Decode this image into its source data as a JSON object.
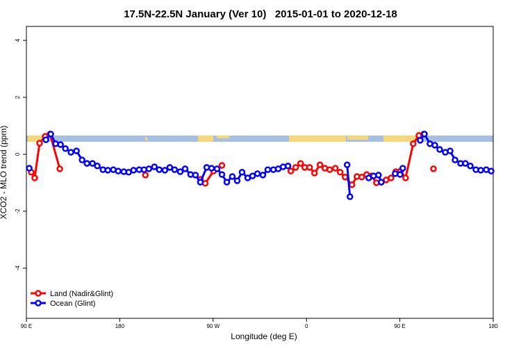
{
  "chart_data": {
    "type": "line",
    "title": "17.5N-22.5N January (Ver 10)   2015-01-01 to 2020-12-18",
    "xlabel": "Longitude (deg E)",
    "ylabel": "XCO2 - MLO trend (ppm)",
    "xlim": [
      90,
      540
    ],
    "xticks": [
      {
        "value": 90,
        "label": "90 E"
      },
      {
        "value": 180,
        "label": "180"
      },
      {
        "value": 270,
        "label": "90 W"
      },
      {
        "value": 360,
        "label": "0"
      },
      {
        "value": 450,
        "label": "90 E"
      },
      {
        "value": 540,
        "label": "180"
      }
    ],
    "ylim": [
      -5.76,
      4.49
    ],
    "yticks": [
      -4,
      -2,
      0,
      2,
      4
    ],
    "legend": "bottom-left",
    "series": [
      {
        "name": "Land (Nadir&Glint)",
        "color": "#ff0000",
        "x": [
          94.7,
          98,
          102.7,
          108.1,
          112.8,
          122.2,
          null,
          204.7,
          null,
          257.7,
          262.4,
          270.4,
          278.5,
          null,
          344.9,
          349.6,
          354.3,
          358.3,
          363,
          367.7,
          373,
          377.7,
          382.4,
          387.8,
          392.5,
          397.2,
          403.9,
          408.6,
          413.3,
          418,
          422.7,
          427.4,
          432.1,
          436.8,
          441.5,
          446.1,
          450.8,
          455.5,
          462.9,
          468.3,
          473,
          null,
          482.4
        ],
        "values": [
          -0.63,
          -0.83,
          0.39,
          0.63,
          0.71,
          -0.51,
          null,
          -0.73,
          null,
          -0.88,
          -1.02,
          -0.59,
          -0.39,
          null,
          -0.59,
          -0.46,
          -0.32,
          -0.46,
          -0.46,
          -0.66,
          -0.37,
          -0.49,
          -0.54,
          -0.49,
          -0.63,
          -0.8,
          -1.07,
          -0.78,
          -0.8,
          -0.71,
          -0.76,
          -1.0,
          -0.98,
          -0.9,
          -0.83,
          -0.61,
          -0.59,
          -0.83,
          0.37,
          0.66,
          0.71,
          null,
          -0.51
        ]
      },
      {
        "name": "Ocean (Glint)",
        "color": "#0000ff",
        "x": [
          92.7,
          null,
          108.8,
          113.5,
          118.2,
          122.9,
          127.6,
          132.9,
          138.3,
          143.7,
          148.4,
          153.7,
          158.4,
          163.8,
          168.5,
          173.8,
          178.5,
          183.9,
          188.6,
          193.3,
          198.7,
          203.4,
          208.1,
          213.4,
          218.1,
          223.5,
          228.2,
          232.9,
          238.3,
          243,
          248.3,
          253,
          257.7,
          263.8,
          268.5,
          273.8,
          278.5,
          283.2,
          288.5,
          293.2,
          297.9,
          303.3,
          308,
          312.7,
          318,
          322.7,
          328.1,
          332.8,
          337.5,
          342.2,
          null,
          399.2,
          401.9,
          null,
          420,
          424.7,
          429.4,
          432.1,
          null,
          445.5,
          450.2,
          452.8,
          null,
          469.6,
          473.7,
          479,
          483.7,
          488.4,
          493.8,
          498.5,
          503.2,
          508.5,
          513.2,
          517.9,
          523.3,
          528,
          533.3,
          538
        ],
        "values": [
          -0.49,
          null,
          0.51,
          0.71,
          0.37,
          0.34,
          0.2,
          0.07,
          0.12,
          -0.2,
          -0.32,
          -0.32,
          -0.41,
          -0.54,
          -0.56,
          -0.54,
          -0.59,
          -0.61,
          -0.63,
          -0.56,
          -0.54,
          -0.54,
          -0.51,
          -0.44,
          -0.54,
          -0.56,
          -0.46,
          -0.54,
          -0.61,
          -0.51,
          -0.71,
          -0.73,
          -0.98,
          -0.46,
          -0.49,
          -0.51,
          -0.71,
          -0.98,
          -0.78,
          -0.93,
          -0.63,
          -0.83,
          -0.76,
          -0.68,
          -0.73,
          -0.54,
          -0.54,
          -0.51,
          -0.44,
          -0.41,
          null,
          -0.37,
          -1.49,
          null,
          -0.83,
          -0.76,
          -0.73,
          -0.98,
          null,
          -0.68,
          -0.71,
          -0.49,
          null,
          0.49,
          0.71,
          0.37,
          0.32,
          0.17,
          0.07,
          0.12,
          -0.2,
          -0.32,
          -0.32,
          -0.41,
          -0.54,
          -0.56,
          -0.54,
          -0.59
        ]
      }
    ]
  }
}
